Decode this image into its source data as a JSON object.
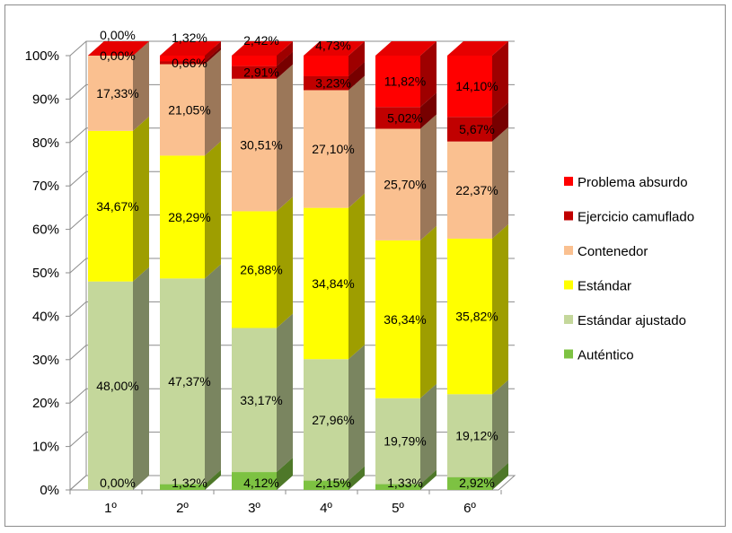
{
  "chart_data": {
    "type": "bar",
    "stacked": true,
    "three_d": true,
    "categories": [
      "1º",
      "2º",
      "3º",
      "4º",
      "5º",
      "6º"
    ],
    "y_ticks": [
      "0%",
      "10%",
      "20%",
      "30%",
      "40%",
      "50%",
      "60%",
      "70%",
      "80%",
      "90%",
      "100%"
    ],
    "ylim": [
      0,
      100
    ],
    "grid": true,
    "legend_position": "right",
    "series": [
      {
        "name": "Auténtico",
        "color": "#7dc242",
        "values": [
          0.0,
          1.32,
          4.12,
          2.15,
          1.33,
          2.92
        ],
        "labels": [
          "0,00%",
          "1,32%",
          "4,12%",
          "2,15%",
          "1,33%",
          "2,92%"
        ]
      },
      {
        "name": "Estándar ajustado",
        "color": "#c4d79b",
        "values": [
          48.0,
          47.37,
          33.17,
          27.96,
          19.79,
          19.12
        ],
        "labels": [
          "48,00%",
          "47,37%",
          "33,17%",
          "27,96%",
          "19,79%",
          "19,12%"
        ]
      },
      {
        "name": "Estándar",
        "color": "#ffff00",
        "values": [
          34.67,
          28.29,
          26.88,
          34.84,
          36.34,
          35.82
        ],
        "labels": [
          "34,67%",
          "28,29%",
          "26,88%",
          "34,84%",
          "36,34%",
          "35,82%"
        ]
      },
      {
        "name": "Contenedor",
        "color": "#fac090",
        "values": [
          17.33,
          21.05,
          30.51,
          27.1,
          25.7,
          22.37
        ],
        "labels": [
          "17,33%",
          "21,05%",
          "30,51%",
          "27,10%",
          "25,70%",
          "22,37%"
        ]
      },
      {
        "name": "Ejercicio camuflado",
        "color": "#c00000",
        "values": [
          0.0,
          0.66,
          2.91,
          3.23,
          5.02,
          5.67
        ],
        "labels": [
          "0,00%",
          "0,66%",
          "2,91%",
          "3,23%",
          "5,02%",
          "5,67%"
        ]
      },
      {
        "name": "Problema absurdo",
        "color": "#ff0000",
        "values": [
          0.0,
          1.32,
          2.42,
          4.73,
          11.82,
          14.1
        ],
        "labels": [
          "0,00%",
          "1,32%",
          "2,42%",
          "4,73%",
          "11,82%",
          "14,10%"
        ]
      }
    ]
  }
}
